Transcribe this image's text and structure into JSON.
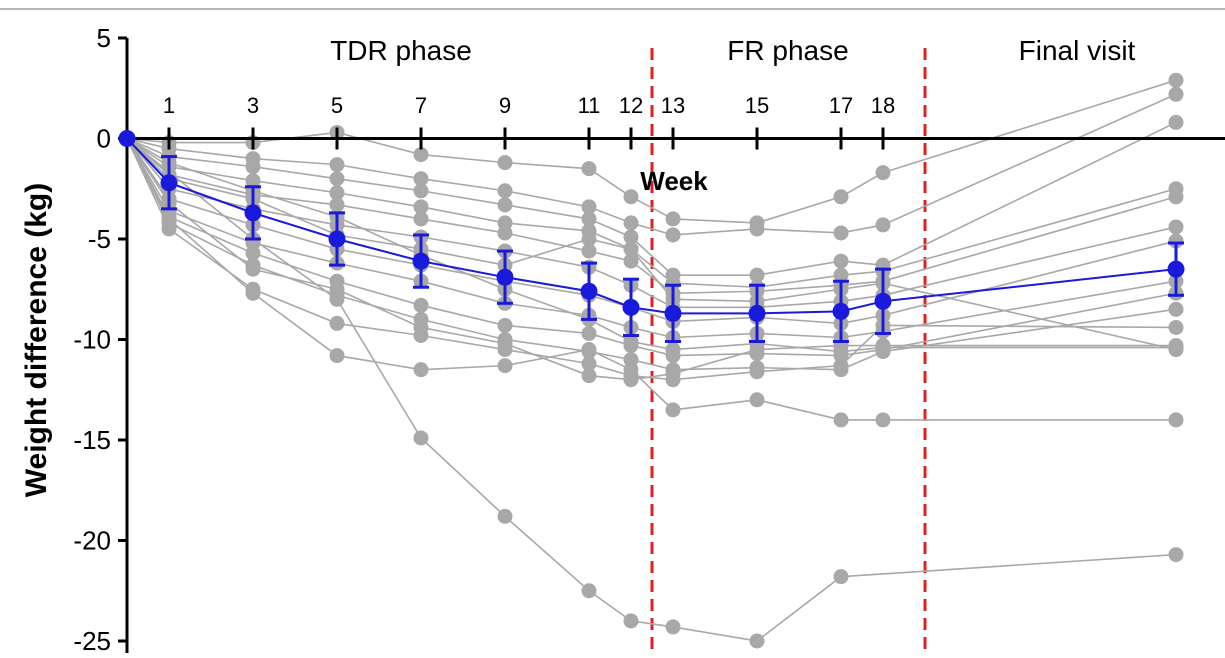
{
  "chart_data": {
    "type": "line",
    "ylabel": "Weight difference (kg)",
    "xlabel": "Week",
    "ylim": [
      -25,
      5
    ],
    "yticks": [
      5,
      0,
      -5,
      -10,
      -15,
      -20,
      -25
    ],
    "xticks": [
      1,
      3,
      5,
      7,
      9,
      11,
      12,
      13,
      15,
      17,
      18
    ],
    "phases": [
      "TDR phase",
      "FR phase",
      "Final visit"
    ],
    "phase_boundaries_weeks": [
      12.5,
      19
    ],
    "final_visit_x": 26,
    "grid": false,
    "colors": {
      "individual": "#a8a8a8",
      "mean": "#1a1adc",
      "phase_line": "#e02020",
      "axis": "#000000"
    },
    "mean_series": {
      "x": [
        0,
        1,
        3,
        5,
        7,
        9,
        11,
        12,
        13,
        15,
        17,
        18,
        26
      ],
      "y": [
        0,
        -2.2,
        -3.7,
        -5.0,
        -6.1,
        -6.9,
        -7.6,
        -8.4,
        -8.7,
        -8.7,
        -8.6,
        -8.1,
        -6.5
      ],
      "err": [
        0,
        1.3,
        1.3,
        1.3,
        1.3,
        1.3,
        1.4,
        1.4,
        1.4,
        1.4,
        1.5,
        1.6,
        1.3
      ]
    },
    "individual_series": [
      {
        "x": [
          0,
          1,
          3,
          5,
          7,
          9,
          11,
          12,
          13,
          15,
          17,
          18,
          26
        ],
        "y": [
          0,
          -0.2,
          -0.2,
          0.3,
          -0.8,
          -1.2,
          -1.5,
          -2.9,
          -4.0,
          -4.2,
          -2.9,
          -1.7,
          2.9
        ]
      },
      {
        "x": [
          0,
          1,
          3,
          5,
          7,
          9,
          11,
          12,
          13,
          15,
          17,
          18,
          26
        ],
        "y": [
          0,
          -0.5,
          -1.0,
          -1.3,
          -2.0,
          -2.6,
          -3.4,
          -4.2,
          -4.8,
          -4.5,
          -4.7,
          -4.3,
          2.2
        ]
      },
      {
        "x": [
          0,
          1,
          3,
          5,
          7,
          9,
          11,
          12,
          13,
          15,
          17,
          18,
          26
        ],
        "y": [
          0,
          -0.9,
          -1.4,
          -2.0,
          -2.6,
          -3.3,
          -4.0,
          -4.9,
          -6.8,
          -6.8,
          -6.1,
          -6.3,
          0.8
        ]
      },
      {
        "x": [
          0,
          1,
          3,
          5,
          7,
          9,
          11,
          12,
          13,
          15,
          17,
          18,
          26
        ],
        "y": [
          0,
          -1.4,
          -2.1,
          -2.7,
          -3.4,
          -4.2,
          -4.6,
          -5.5,
          -7.2,
          -7.4,
          -6.8,
          -6.6,
          -2.5
        ]
      },
      {
        "x": [
          0,
          1,
          3,
          5,
          7,
          9,
          11,
          12,
          13,
          15,
          17,
          18,
          26
        ],
        "y": [
          0,
          -1.8,
          -2.8,
          -3.3,
          -4.0,
          -4.7,
          -5.6,
          -6.1,
          -7.7,
          -7.6,
          -7.3,
          -7.1,
          -2.9
        ]
      },
      {
        "x": [
          0,
          1,
          3,
          5,
          7,
          9,
          11,
          12,
          13,
          15,
          17,
          18,
          26
        ],
        "y": [
          0,
          -2.5,
          -3.5,
          -4.3,
          -4.9,
          -5.6,
          -6.4,
          -7.3,
          -8.4,
          -8.4,
          -8.1,
          -7.8,
          -4.4
        ]
      },
      {
        "x": [
          0,
          1,
          3,
          5,
          7,
          9,
          11,
          12,
          13,
          15,
          17,
          18,
          26
        ],
        "y": [
          0,
          -3.0,
          -4.3,
          -5.5,
          -6.3,
          -7.1,
          -7.8,
          -8.4,
          -9.1,
          -8.9,
          -9.2,
          -8.8,
          -5.1
        ]
      },
      {
        "x": [
          0,
          1,
          3,
          5,
          7,
          9,
          11,
          12,
          13,
          15,
          17,
          18,
          26
        ],
        "y": [
          0,
          -3.6,
          -5.2,
          -6.2,
          -7.1,
          -8.2,
          -8.8,
          -9.4,
          -9.9,
          -9.7,
          -9.9,
          -9.6,
          -7.1
        ]
      },
      {
        "x": [
          0,
          1,
          3,
          5,
          7,
          9,
          11,
          12,
          13,
          15,
          17,
          18,
          26
        ],
        "y": [
          0,
          -3.9,
          -5.7,
          -7.1,
          -8.3,
          -9.3,
          -9.7,
          -10.3,
          -10.8,
          -10.7,
          -10.8,
          -10.5,
          -7.7
        ]
      },
      {
        "x": [
          0,
          1,
          3,
          5,
          7,
          9,
          11,
          12,
          13,
          15,
          17,
          18,
          26
        ],
        "y": [
          0,
          -4.2,
          -6.3,
          -7.8,
          -9.0,
          -10.0,
          -10.6,
          -11.0,
          -11.5,
          -11.4,
          -11.5,
          -10.6,
          -8.5
        ]
      },
      {
        "x": [
          0,
          1,
          3,
          5,
          7,
          9,
          11,
          12,
          13,
          15,
          17,
          18,
          26
        ],
        "y": [
          0,
          -4.5,
          -7.5,
          -9.2,
          -9.8,
          -10.5,
          -11.2,
          -11.8,
          -12.0,
          -11.6,
          -11.3,
          -9.3,
          -9.4
        ]
      },
      {
        "x": [
          0,
          1,
          3,
          5,
          7,
          9,
          11,
          12,
          13,
          15,
          17,
          18,
          26
        ],
        "y": [
          0,
          -3.2,
          -6.5,
          -7.5,
          -9.4,
          -10.2,
          -11.8,
          -12.0,
          -11.7,
          -10.5,
          -10.3,
          -10.3,
          -10.3
        ]
      },
      {
        "x": [
          0,
          1,
          3,
          5,
          7,
          9,
          11,
          12,
          13,
          15,
          17,
          18,
          26
        ],
        "y": [
          0,
          -4.0,
          -7.7,
          -10.8,
          -11.5,
          -11.3,
          -10.5,
          -11.5,
          -13.5,
          -13.0,
          -14.0,
          -14.0,
          -14.0
        ]
      },
      {
        "x": [
          0,
          3,
          5,
          7,
          9,
          11,
          12,
          13,
          15,
          17,
          26
        ],
        "y": [
          0,
          -5.0,
          -8.0,
          -14.9,
          -18.8,
          -22.5,
          -24.0,
          -24.3,
          -25.0,
          -21.8,
          -20.7
        ]
      },
      {
        "x": [
          0,
          1,
          3,
          5,
          7,
          9,
          11,
          12,
          13,
          15,
          17,
          18,
          26
        ],
        "y": [
          0,
          -2.0,
          -3.0,
          -4.8,
          -5.5,
          -6.3,
          -5.0,
          -5.5,
          -8.0,
          -8.1,
          -7.5,
          -7.2,
          -10.5
        ]
      },
      {
        "x": [
          0,
          1,
          3,
          5,
          7,
          9,
          11,
          12,
          13,
          15,
          17,
          18,
          26
        ],
        "y": [
          0,
          -1.2,
          -2.6,
          -3.9,
          -5.8,
          -7.5,
          -9.0,
          -10.1,
          -10.5,
          -10.2,
          -10.6,
          -10.4,
          -10.4
        ]
      }
    ]
  }
}
